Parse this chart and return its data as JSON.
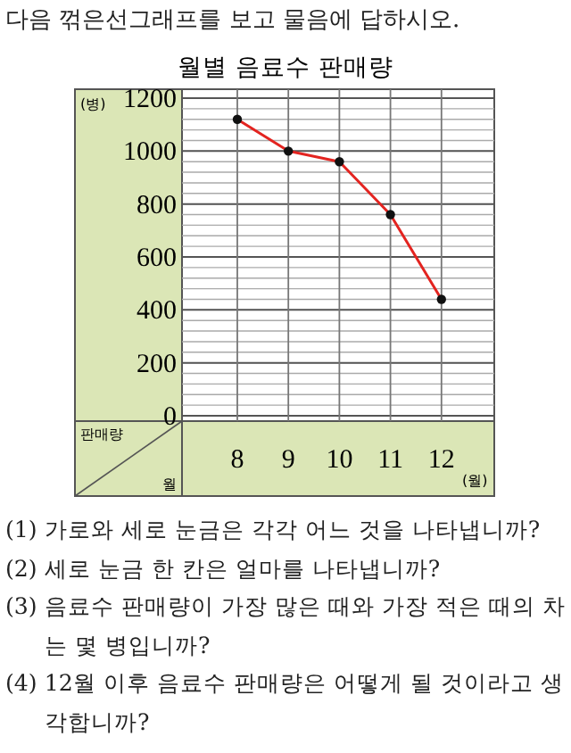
{
  "chart_data": {
    "type": "line",
    "title": "월별 음료수 판매량",
    "xlabel": "(월)",
    "ylabel": "(병)",
    "categories": [
      "8",
      "9",
      "10",
      "11",
      "12"
    ],
    "series": [
      {
        "color": "#e32420",
        "values": [
          1120,
          1000,
          960,
          760,
          440
        ]
      }
    ],
    "ylim": [
      0,
      1200
    ],
    "yticks": [
      0,
      200,
      400,
      600,
      800,
      1000,
      1200
    ],
    "grid": true,
    "marker": "circle",
    "line_style": "solid",
    "annotations": [
      "다음 꺾은선그래프를 보고 물음에 답하시오.",
      "판매량",
      "월",
      "(1) 가로와 세로 눈금은 각각 어느 것을 나타냅니까?",
      "(2) 세로 눈금 한 칸은 얼마를 나타냅니까?",
      "(3) 음료수 판매량이 가장 많은 때와 가장 적은 때의 차는 몇 병입니까?",
      "(4) 12월 이후 음료수 판매량은 어떻게 될 것이라고 생각합니까?"
    ]
  }
}
